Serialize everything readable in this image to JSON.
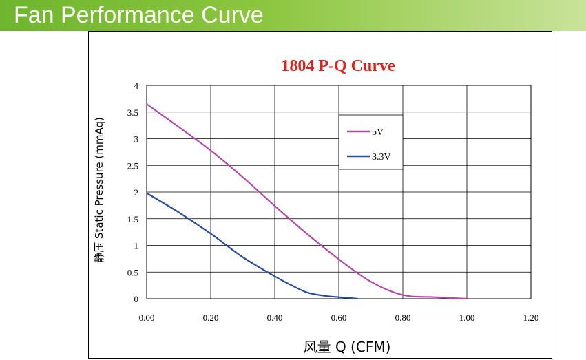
{
  "header": {
    "title": "Fan Performance Curve"
  },
  "chart_data": {
    "type": "line",
    "title": "1804 P-Q Curve",
    "xlabel": "风量 Q (CFM)",
    "ylabel": "静压 Static Pressure (mmAq)",
    "xlim": [
      0,
      1.2
    ],
    "ylim": [
      0,
      4
    ],
    "x_ticks": [
      "0.00",
      "0.20",
      "0.40",
      "0.60",
      "0.80",
      "1.00",
      "1.20"
    ],
    "y_ticks": [
      "0",
      "0.5",
      "1",
      "1.5",
      "2",
      "2.5",
      "3",
      "3.5",
      "4"
    ],
    "grid": true,
    "legend_position": "right",
    "series": [
      {
        "name": "5V",
        "color": "#b04aa6",
        "points": [
          [
            0.0,
            3.65
          ],
          [
            0.1,
            3.22
          ],
          [
            0.2,
            2.78
          ],
          [
            0.3,
            2.28
          ],
          [
            0.4,
            1.74
          ],
          [
            0.5,
            1.22
          ],
          [
            0.6,
            0.74
          ],
          [
            0.7,
            0.32
          ],
          [
            0.8,
            0.07
          ],
          [
            0.9,
            0.03
          ],
          [
            1.0,
            0.0
          ]
        ]
      },
      {
        "name": "3.3V",
        "color": "#2a4a9a",
        "points": [
          [
            0.0,
            1.98
          ],
          [
            0.1,
            1.62
          ],
          [
            0.2,
            1.22
          ],
          [
            0.3,
            0.78
          ],
          [
            0.4,
            0.42
          ],
          [
            0.45,
            0.26
          ],
          [
            0.5,
            0.12
          ],
          [
            0.55,
            0.06
          ],
          [
            0.6,
            0.03
          ],
          [
            0.66,
            0.0
          ]
        ]
      }
    ]
  }
}
